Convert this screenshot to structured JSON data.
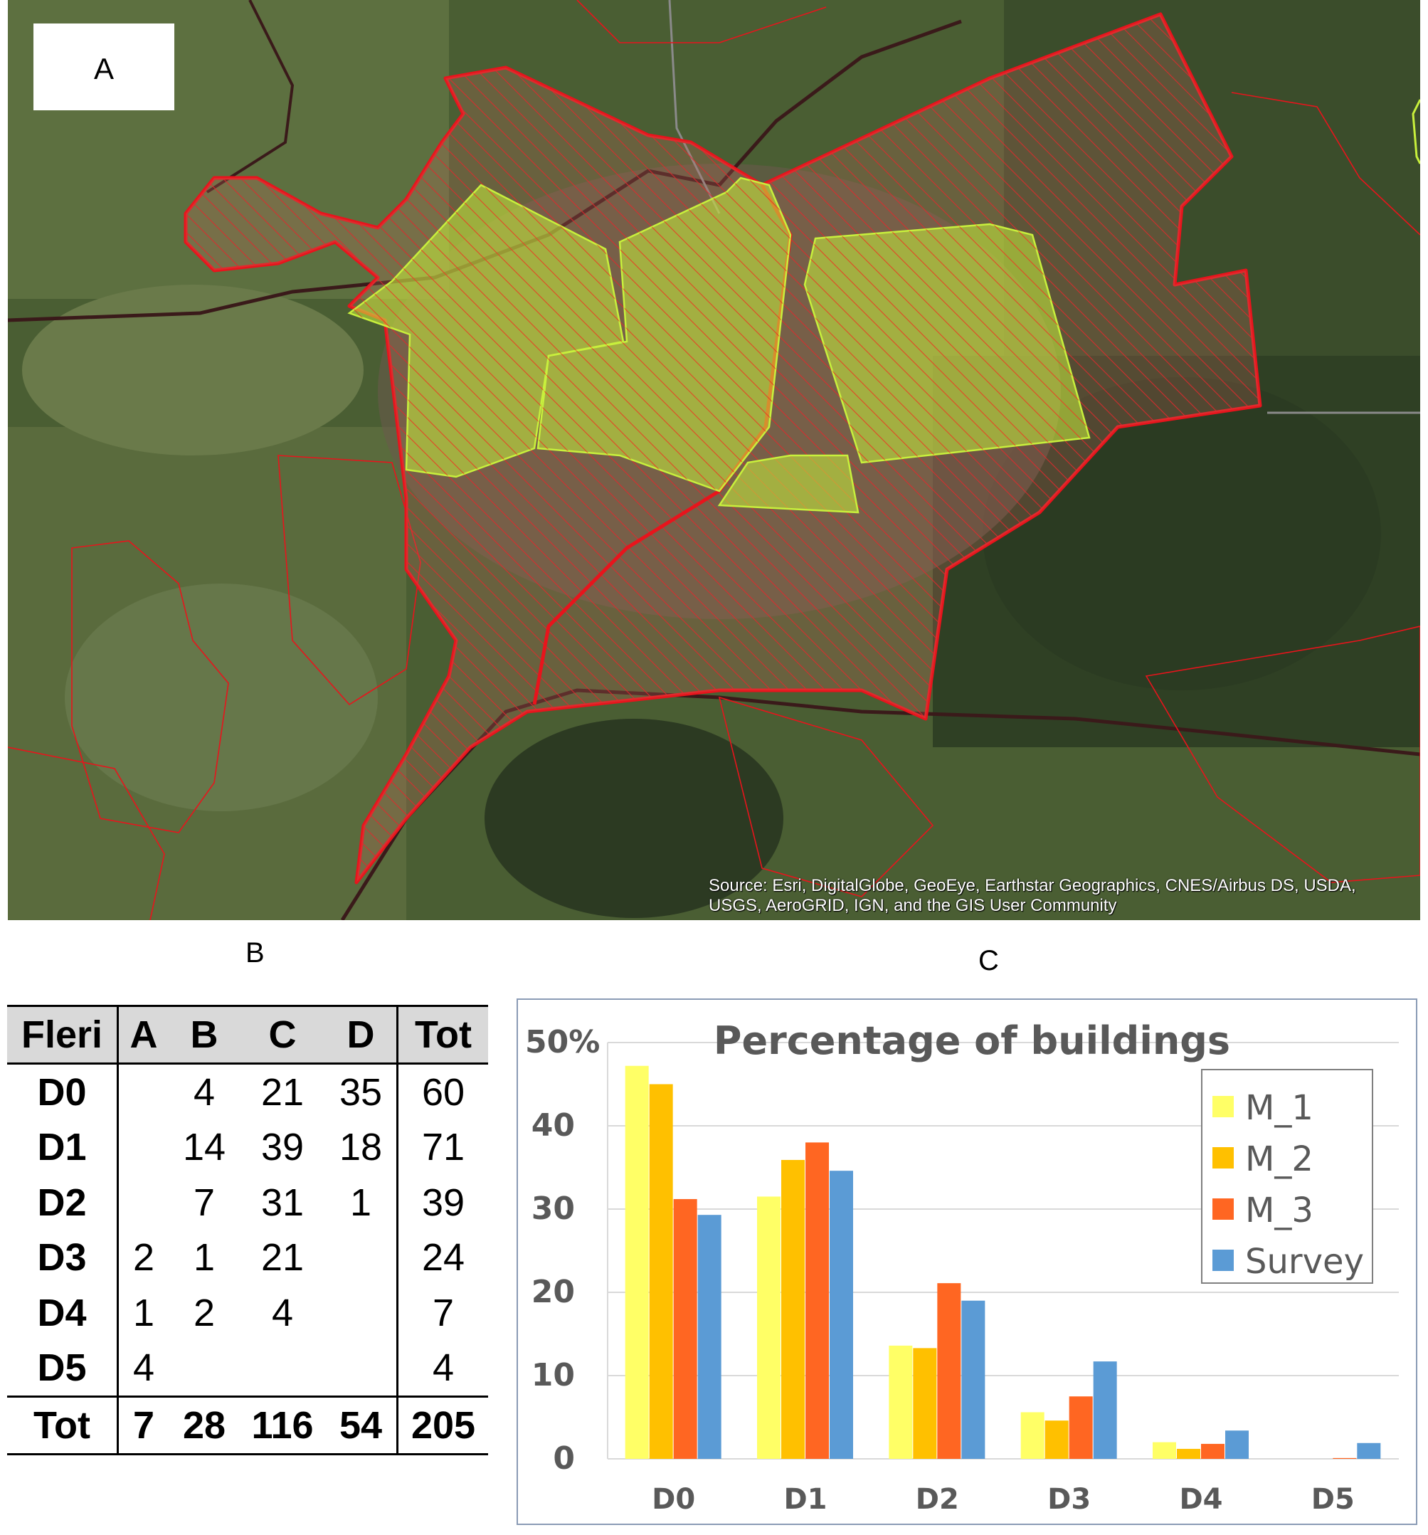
{
  "panels": {
    "a": "A",
    "b": "B",
    "c": "C"
  },
  "map": {
    "attribution_line1": "Source: Esri, DigitalGlobe, GeoEye, Earthstar Geographics, CNES/Airbus DS, USDA,",
    "attribution_line2": "USGS, AeroGRID, IGN, and the GIS User Community",
    "colors": {
      "boundary": "#e8141c",
      "highlight": "#c8f03c",
      "road": "#3a1a1a"
    }
  },
  "table": {
    "headers": [
      "Fleri",
      "A",
      "B",
      "C",
      "D",
      "Tot"
    ],
    "rows": [
      {
        "label": "D0",
        "cells": [
          "",
          "4",
          "21",
          "35",
          "60"
        ]
      },
      {
        "label": "D1",
        "cells": [
          "",
          "14",
          "39",
          "18",
          "71"
        ]
      },
      {
        "label": "D2",
        "cells": [
          "",
          "7",
          "31",
          "1",
          "39"
        ]
      },
      {
        "label": "D3",
        "cells": [
          "2",
          "1",
          "21",
          "",
          "24"
        ]
      },
      {
        "label": "D4",
        "cells": [
          "1",
          "2",
          "4",
          "",
          "7"
        ]
      },
      {
        "label": "D5",
        "cells": [
          "4",
          "",
          "",
          "",
          "4"
        ]
      }
    ],
    "total": {
      "label": "Tot",
      "cells": [
        "7",
        "28",
        "116",
        "54",
        "205"
      ]
    }
  },
  "chart_data": {
    "type": "bar",
    "title": "Percentage of buildings",
    "categories": [
      "D0",
      "D1",
      "D2",
      "D3",
      "D4",
      "D5"
    ],
    "ylim": [
      0,
      50
    ],
    "yticks": [
      "0",
      "10",
      "20",
      "30",
      "40",
      "50%"
    ],
    "legend_position": "top-right",
    "grid": true,
    "series": [
      {
        "name": "M_1",
        "color": "#ffff66",
        "values": [
          47.2,
          31.5,
          13.6,
          5.6,
          2.0,
          0.0
        ]
      },
      {
        "name": "M_2",
        "color": "#ffc000",
        "values": [
          45.0,
          35.9,
          13.3,
          4.6,
          1.2,
          0.0
        ]
      },
      {
        "name": "M_3",
        "color": "#ff6622",
        "values": [
          31.2,
          38.0,
          21.1,
          7.5,
          1.8,
          0.1
        ]
      },
      {
        "name": "Survey",
        "color": "#5b9bd5",
        "values": [
          29.3,
          34.6,
          19.0,
          11.7,
          3.4,
          1.9
        ]
      }
    ]
  }
}
